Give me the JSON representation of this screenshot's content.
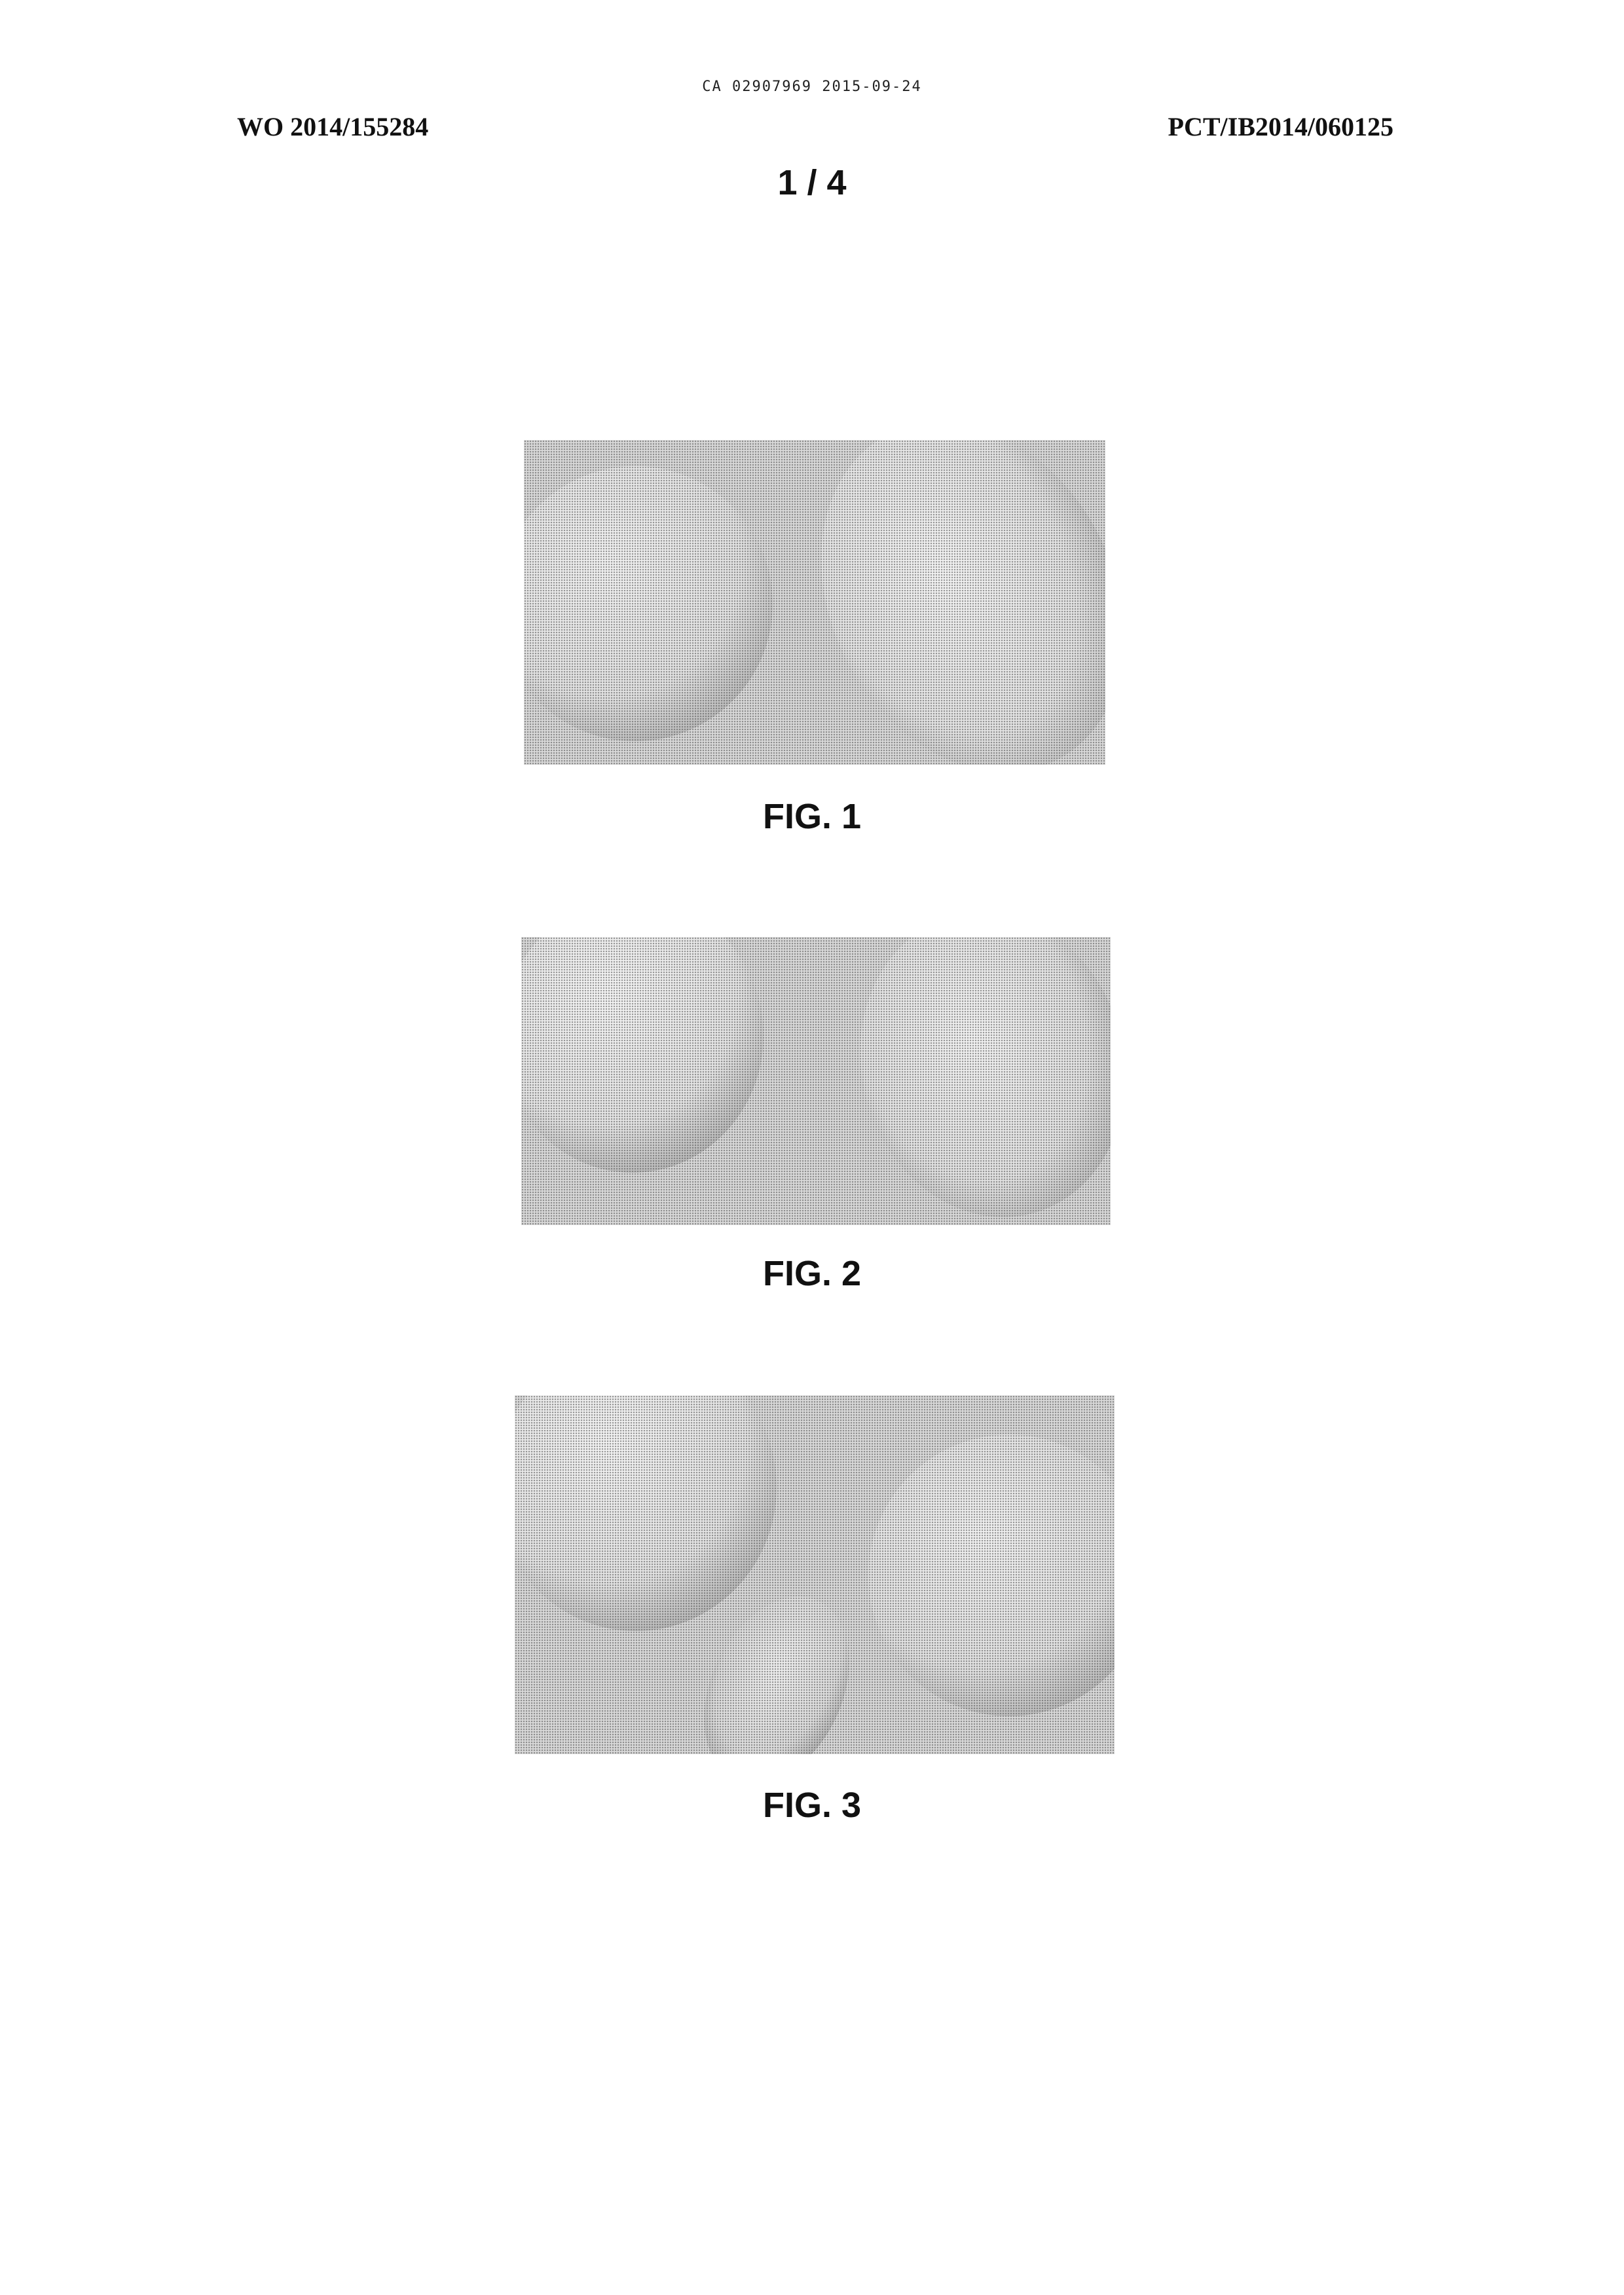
{
  "header": {
    "ca_line": "CA 02907969 2015-09-24",
    "wo_number": "WO 2014/155284",
    "pct_number": "PCT/IB2014/060125",
    "sheet": "1 / 4"
  },
  "figures": [
    {
      "label": "FIG. 1"
    },
    {
      "label": "FIG. 2"
    },
    {
      "label": "FIG. 3"
    }
  ]
}
